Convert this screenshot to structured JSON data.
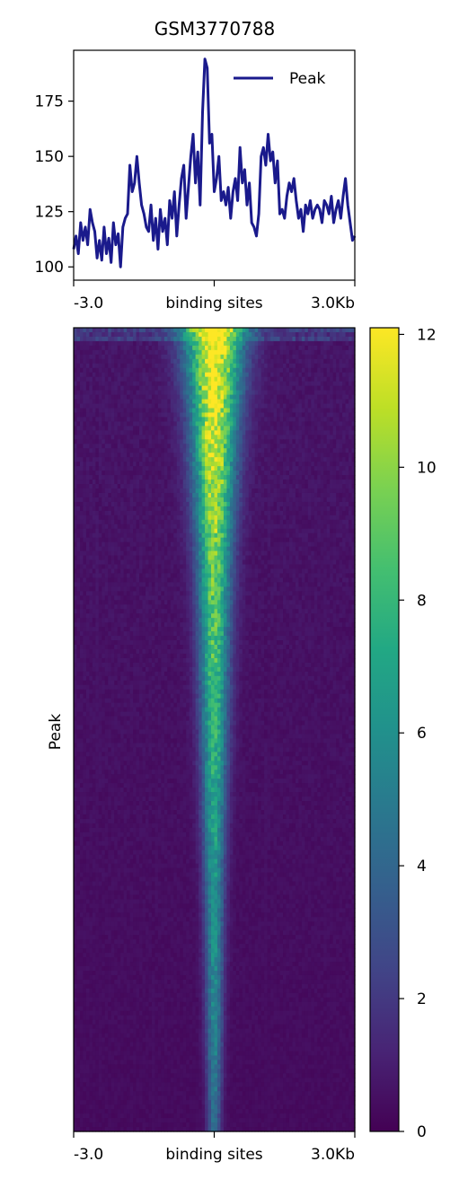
{
  "chart_data": [
    {
      "type": "line",
      "title": "GSM3770788",
      "xlabel": "",
      "ylabel": "",
      "xlim": [
        -3.0,
        3.0
      ],
      "ylim": [
        94,
        198
      ],
      "x_ticks": [
        -3.0,
        0.0,
        3.0
      ],
      "x_tick_labels": [
        "-3.0",
        "binding sites",
        "3.0Kb"
      ],
      "y_ticks": [
        100,
        125,
        150,
        175
      ],
      "y_tick_labels": [
        "100",
        "125",
        "150",
        "175"
      ],
      "legend": {
        "placement": "top-right",
        "entries": [
          "Peak"
        ]
      },
      "grid": false,
      "series": [
        {
          "name": "Peak",
          "color": "#1a1a8c",
          "x": [
            -3.0,
            -2.95,
            -2.9,
            -2.85,
            -2.8,
            -2.75,
            -2.7,
            -2.65,
            -2.6,
            -2.55,
            -2.5,
            -2.45,
            -2.4,
            -2.35,
            -2.3,
            -2.25,
            -2.2,
            -2.15,
            -2.1,
            -2.05,
            -2.0,
            -1.95,
            -1.9,
            -1.85,
            -1.8,
            -1.75,
            -1.7,
            -1.65,
            -1.6,
            -1.55,
            -1.5,
            -1.45,
            -1.4,
            -1.35,
            -1.3,
            -1.25,
            -1.2,
            -1.15,
            -1.1,
            -1.05,
            -1.0,
            -0.95,
            -0.9,
            -0.85,
            -0.8,
            -0.75,
            -0.7,
            -0.65,
            -0.6,
            -0.55,
            -0.5,
            -0.45,
            -0.4,
            -0.35,
            -0.3,
            -0.25,
            -0.2,
            -0.15,
            -0.1,
            -0.05,
            0.0,
            0.05,
            0.1,
            0.15,
            0.2,
            0.25,
            0.3,
            0.35,
            0.4,
            0.45,
            0.5,
            0.55,
            0.6,
            0.65,
            0.7,
            0.75,
            0.8,
            0.85,
            0.9,
            0.95,
            1.0,
            1.05,
            1.1,
            1.15,
            1.2,
            1.25,
            1.3,
            1.35,
            1.4,
            1.45,
            1.5,
            1.55,
            1.6,
            1.65,
            1.7,
            1.75,
            1.8,
            1.85,
            1.9,
            1.95,
            2.0,
            2.05,
            2.1,
            2.15,
            2.2,
            2.25,
            2.3,
            2.35,
            2.4,
            2.45,
            2.5,
            2.55,
            2.6,
            2.65,
            2.7,
            2.75,
            2.8,
            2.85,
            2.9,
            2.95,
            3.0
          ],
          "y": [
            108,
            114,
            106,
            120,
            112,
            118,
            110,
            126,
            120,
            116,
            104,
            112,
            103,
            118,
            106,
            113,
            102,
            120,
            110,
            115,
            100,
            118,
            122,
            124,
            146,
            134,
            138,
            150,
            138,
            128,
            124,
            118,
            116,
            128,
            112,
            122,
            108,
            126,
            116,
            122,
            110,
            130,
            122,
            134,
            114,
            128,
            140,
            146,
            122,
            136,
            150,
            160,
            138,
            152,
            128,
            170,
            194,
            190,
            156,
            160,
            134,
            140,
            150,
            130,
            134,
            128,
            136,
            122,
            134,
            140,
            130,
            154,
            138,
            144,
            128,
            138,
            120,
            118,
            114,
            124,
            150,
            154,
            146,
            160,
            148,
            152,
            138,
            148,
            124,
            126,
            122,
            132,
            138,
            134,
            140,
            130,
            122,
            126,
            116,
            128,
            124,
            130,
            122,
            126,
            128,
            126,
            120,
            130,
            128,
            124,
            132,
            120,
            126,
            130,
            122,
            132,
            140,
            128,
            120,
            112,
            114
          ]
        }
      ]
    },
    {
      "type": "heatmap",
      "xlabel": "",
      "ylabel": "Peak",
      "xlim": [
        -3.0,
        3.0
      ],
      "x_ticks": [
        -3.0,
        0.0,
        3.0
      ],
      "x_tick_labels": [
        "-3.0",
        "binding sites",
        "3.0Kb"
      ],
      "colormap": "viridis",
      "color_range": [
        0,
        12.1
      ],
      "colorbar_ticks": [
        0,
        2,
        4,
        6,
        8,
        10,
        12
      ],
      "colorbar_tick_labels": [
        "0",
        "2",
        "4",
        "6",
        "8",
        "10",
        "12"
      ],
      "description_profile": {
        "center_peak_fraction_from_top": [
          0.0,
          0.1,
          0.3,
          0.5,
          0.7,
          0.9,
          1.0
        ],
        "center_intensity": [
          12.0,
          11.5,
          9.0,
          7.5,
          6.0,
          5.0,
          4.0
        ],
        "center_width_kb": [
          0.45,
          0.35,
          0.25,
          0.2,
          0.15,
          0.12,
          0.1
        ]
      }
    }
  ]
}
